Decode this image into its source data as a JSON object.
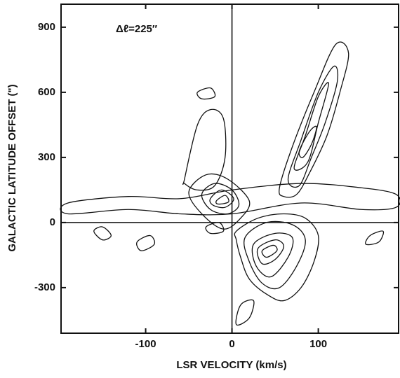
{
  "chart_data": {
    "type": "contour",
    "xlabel": "LSR VELOCITY (km/s)",
    "ylabel": "GALACTIC LATITUDE OFFSET (\")",
    "annotation": "Δℓ=225″",
    "xlim": [
      -198,
      193
    ],
    "ylim": [
      -510,
      1006
    ],
    "xticks": [
      -100,
      0,
      100
    ],
    "yticks": [
      -300,
      0,
      300,
      600,
      900
    ],
    "color": "#111111",
    "contours": [
      {
        "x": [
          5,
          30,
          60,
          85,
          100,
          95,
          80,
          60,
          40,
          20,
          10,
          5
        ],
        "y": [
          -40,
          20,
          40,
          20,
          -60,
          -180,
          -300,
          -360,
          -330,
          -260,
          -160,
          -80
        ]
      },
      {
        "x": [
          15,
          40,
          70,
          85,
          75,
          55,
          35,
          20
        ],
        "y": [
          -70,
          0,
          -10,
          -80,
          -200,
          -300,
          -280,
          -180
        ]
      },
      {
        "x": [
          25,
          50,
          70,
          65,
          45,
          28
        ],
        "y": [
          -100,
          -50,
          -70,
          -160,
          -250,
          -200
        ]
      },
      {
        "x": [
          30,
          50,
          60,
          50,
          35
        ],
        "y": [
          -120,
          -80,
          -110,
          -170,
          -190
        ]
      },
      {
        "x": [
          35,
          48,
          52,
          40
        ],
        "y": [
          -130,
          -105,
          -130,
          -160
        ]
      },
      {
        "x": [
          -50,
          -30,
          -5,
          20,
          10,
          -10,
          -35
        ],
        "y": [
          140,
          220,
          200,
          100,
          20,
          -30,
          40
        ]
      },
      {
        "x": [
          -35,
          -20,
          0,
          8,
          -5,
          -25
        ],
        "y": [
          130,
          180,
          150,
          80,
          40,
          60
        ]
      },
      {
        "x": [
          -25,
          -12,
          2,
          -8,
          -22
        ],
        "y": [
          110,
          150,
          110,
          70,
          80
        ]
      },
      {
        "x": [
          -18,
          -8,
          -4,
          -16
        ],
        "y": [
          100,
          125,
          95,
          85
        ]
      },
      {
        "x": [
          -55,
          -40,
          -25,
          -10,
          -8,
          -20,
          -40,
          -55
        ],
        "y": [
          200,
          450,
          520,
          480,
          300,
          170,
          150,
          180
        ]
      },
      {
        "x": [
          55,
          70,
          95,
          120,
          135,
          125,
          110,
          90,
          75,
          60
        ],
        "y": [
          160,
          350,
          600,
          820,
          780,
          600,
          400,
          230,
          130,
          120
        ]
      },
      {
        "x": [
          65,
          80,
          100,
          118,
          122,
          108,
          92,
          78
        ],
        "y": [
          200,
          380,
          600,
          720,
          650,
          460,
          300,
          170
        ]
      },
      {
        "x": [
          72,
          85,
          100,
          112,
          100,
          88
        ],
        "y": [
          250,
          400,
          580,
          640,
          460,
          280
        ]
      },
      {
        "x": [
          78,
          90,
          98,
          92,
          82
        ],
        "y": [
          330,
          420,
          440,
          360,
          300
        ]
      },
      {
        "x": [
          -190,
          -120,
          -60,
          0,
          80,
          150,
          190,
          190,
          150,
          80,
          0,
          -60,
          -120,
          -190
        ],
        "y": [
          90,
          120,
          110,
          150,
          180,
          160,
          130,
          70,
          60,
          90,
          40,
          40,
          60,
          40
        ]
      },
      {
        "x": [
          -160,
          -150,
          -140,
          -150
        ],
        "y": [
          -40,
          -20,
          -60,
          -80
        ]
      },
      {
        "x": [
          -110,
          -95,
          -90,
          -105
        ],
        "y": [
          -90,
          -60,
          -100,
          -130
        ]
      },
      {
        "x": [
          10,
          25,
          20,
          5
        ],
        "y": [
          -380,
          -360,
          -440,
          -470
        ]
      },
      {
        "x": [
          -30,
          -15,
          -10,
          -25
        ],
        "y": [
          -20,
          0,
          -40,
          -50
        ]
      },
      {
        "x": [
          160,
          175,
          170,
          155
        ],
        "y": [
          -60,
          -40,
          -90,
          -100
        ]
      },
      {
        "x": [
          -40,
          -25,
          -20,
          -35
        ],
        "y": [
          600,
          620,
          580,
          570
        ]
      }
    ]
  }
}
